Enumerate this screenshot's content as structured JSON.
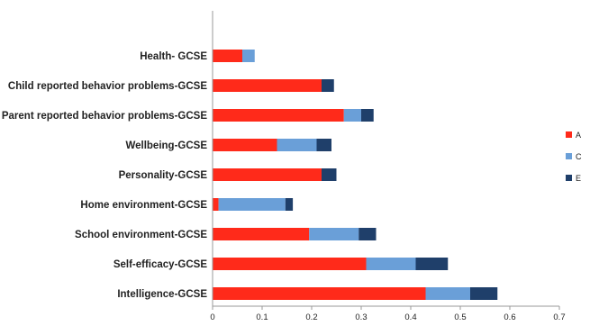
{
  "chart_data": {
    "type": "bar",
    "orientation": "horizontal",
    "stacked": true,
    "categories": [
      "Health- GCSE",
      "Child reported behavior problems-GCSE",
      "Parent reported behavior problems-GCSE",
      "Wellbeing-GCSE",
      "Personality-GCSE",
      "Home environment-GCSE",
      "School environment-GCSE",
      "Self-efficacy-GCSE",
      "Intelligence-GCSE"
    ],
    "series": [
      {
        "name": "A",
        "color": "#ff2a1a",
        "values": [
          0.06,
          0.22,
          0.265,
          0.13,
          0.22,
          0.012,
          0.195,
          0.31,
          0.43
        ]
      },
      {
        "name": "C",
        "color": "#6a9fd8",
        "values": [
          0.025,
          0.0,
          0.035,
          0.08,
          0.0,
          0.135,
          0.1,
          0.1,
          0.09
        ]
      },
      {
        "name": "E",
        "color": "#1f3f6a",
        "values": [
          0.0,
          0.025,
          0.025,
          0.03,
          0.03,
          0.015,
          0.035,
          0.065,
          0.055
        ]
      }
    ],
    "xlim": [
      0,
      0.7
    ],
    "xticks": [
      "0",
      "0.1",
      "0.2",
      "0.3",
      "0.4",
      "0.5",
      "0.6",
      "0.7"
    ],
    "grid": false,
    "legend": "right"
  }
}
